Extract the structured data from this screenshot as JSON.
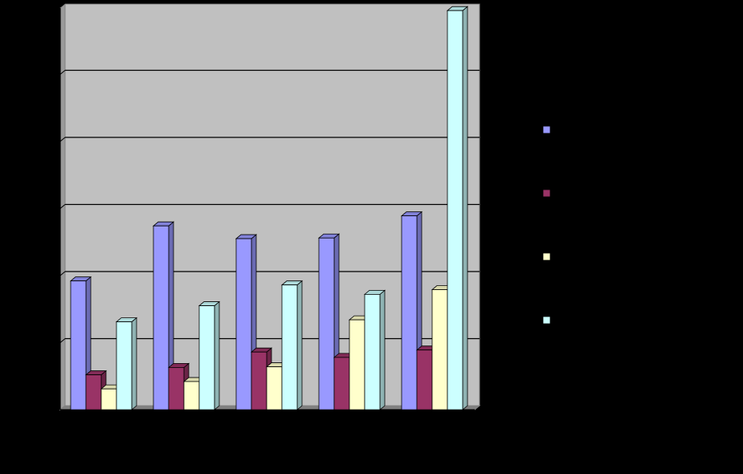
{
  "chart_data": {
    "type": "bar",
    "style": "3d-clustered-column",
    "title": "",
    "xlabel": "",
    "ylabel": "",
    "ylim": [
      0,
      6
    ],
    "grid": true,
    "legend_position": "right",
    "categories": [
      "",
      "",
      "",
      "",
      ""
    ],
    "series": [
      {
        "color": "#9999ff",
        "values": [
          1.92,
          2.74,
          2.55,
          2.56,
          2.89
        ]
      },
      {
        "color": "#993366",
        "values": [
          0.52,
          0.63,
          0.86,
          0.78,
          0.89
        ]
      },
      {
        "color": "#ffffcc",
        "values": [
          0.31,
          0.42,
          0.64,
          1.34,
          1.79
        ]
      },
      {
        "color": "#ccffff",
        "values": [
          1.31,
          1.55,
          1.86,
          1.72,
          5.95
        ]
      }
    ]
  }
}
